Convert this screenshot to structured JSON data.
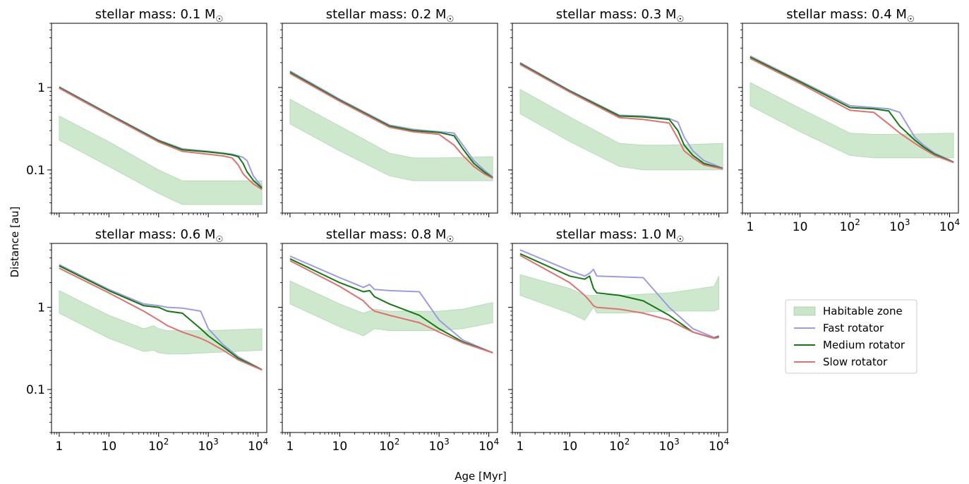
{
  "figure": {
    "ylabel": "Distance [au]",
    "xlabel": "Age [Myr]",
    "legend": {
      "placement": "right",
      "entries": [
        {
          "label": "Habitable zone",
          "color": "#a6d6a6",
          "kind": "band"
        },
        {
          "label": "Fast rotator",
          "color": "#9b9be6",
          "kind": "line"
        },
        {
          "label": "Medium rotator",
          "color": "#117a11",
          "kind": "line"
        },
        {
          "label": "Slow rotator",
          "color": "#e36f6f",
          "kind": "line"
        }
      ]
    }
  },
  "chart_data": [
    {
      "type": "line",
      "title": "stellar mass: 0.1 M",
      "title_symbol": "☉",
      "xscale": "log",
      "yscale": "log",
      "xlim": [
        0.7,
        15000
      ],
      "ylim": [
        0.03,
        6
      ],
      "x": [
        1,
        10,
        100,
        300,
        1000,
        2000,
        3000,
        4000,
        5000,
        6000,
        8000,
        12000
      ],
      "series": [
        {
          "name": "Fast rotator",
          "values": [
            1.02,
            0.48,
            0.23,
            0.18,
            0.168,
            0.16,
            0.155,
            0.148,
            0.142,
            0.13,
            0.085,
            0.062
          ]
        },
        {
          "name": "Medium rotator",
          "values": [
            1.0,
            0.47,
            0.225,
            0.176,
            0.165,
            0.158,
            0.152,
            0.145,
            0.12,
            0.095,
            0.075,
            0.06
          ]
        },
        {
          "name": "Slow rotator",
          "values": [
            0.98,
            0.46,
            0.218,
            0.168,
            0.155,
            0.148,
            0.14,
            0.115,
            0.09,
            0.08,
            0.068,
            0.058
          ]
        }
      ],
      "habitable_zone": {
        "x": [
          1,
          10,
          100,
          300,
          1000,
          12000
        ],
        "low": [
          0.23,
          0.11,
          0.052,
          0.038,
          0.038,
          0.038
        ],
        "high": [
          0.45,
          0.22,
          0.1,
          0.074,
          0.074,
          0.074
        ]
      }
    },
    {
      "type": "line",
      "title": "stellar mass: 0.2 M",
      "title_symbol": "☉",
      "xscale": "log",
      "yscale": "log",
      "xlim": [
        0.7,
        15000
      ],
      "ylim": [
        0.03,
        6
      ],
      "x": [
        1,
        10,
        100,
        300,
        1000,
        2000,
        3000,
        5000,
        8000,
        12000
      ],
      "series": [
        {
          "name": "Fast rotator",
          "values": [
            1.58,
            0.72,
            0.35,
            0.31,
            0.29,
            0.28,
            0.2,
            0.13,
            0.1,
            0.082
          ]
        },
        {
          "name": "Medium rotator",
          "values": [
            1.53,
            0.7,
            0.34,
            0.3,
            0.285,
            0.26,
            0.18,
            0.12,
            0.095,
            0.08
          ]
        },
        {
          "name": "Slow rotator",
          "values": [
            1.48,
            0.68,
            0.33,
            0.29,
            0.27,
            0.2,
            0.15,
            0.11,
            0.09,
            0.079
          ]
        }
      ],
      "habitable_zone": {
        "x": [
          1,
          10,
          100,
          300,
          1000,
          12000
        ],
        "low": [
          0.36,
          0.17,
          0.085,
          0.074,
          0.074,
          0.074
        ],
        "high": [
          0.72,
          0.34,
          0.16,
          0.14,
          0.14,
          0.145
        ]
      }
    },
    {
      "type": "line",
      "title": "stellar mass: 0.3 M",
      "title_symbol": "☉",
      "xscale": "log",
      "yscale": "log",
      "xlim": [
        0.7,
        15000
      ],
      "ylim": [
        0.03,
        6
      ],
      "x": [
        1,
        10,
        100,
        300,
        1000,
        1500,
        2000,
        3000,
        5000,
        12000
      ],
      "series": [
        {
          "name": "Fast rotator",
          "values": [
            2.0,
            0.92,
            0.46,
            0.45,
            0.42,
            0.38,
            0.25,
            0.17,
            0.13,
            0.105
          ]
        },
        {
          "name": "Medium rotator",
          "values": [
            1.95,
            0.9,
            0.45,
            0.44,
            0.41,
            0.3,
            0.2,
            0.15,
            0.12,
            0.104
          ]
        },
        {
          "name": "Slow rotator",
          "values": [
            1.9,
            0.88,
            0.43,
            0.41,
            0.37,
            0.24,
            0.17,
            0.14,
            0.115,
            0.103
          ]
        }
      ],
      "habitable_zone": {
        "x": [
          1,
          10,
          100,
          300,
          1000,
          12000
        ],
        "low": [
          0.48,
          0.22,
          0.11,
          0.1,
          0.1,
          0.1
        ],
        "high": [
          0.95,
          0.44,
          0.21,
          0.2,
          0.2,
          0.21
        ]
      }
    },
    {
      "type": "line",
      "title": "stellar mass: 0.4 M",
      "title_symbol": "☉",
      "xscale": "log",
      "yscale": "log",
      "xlim": [
        0.7,
        15000
      ],
      "ylim": [
        0.03,
        6
      ],
      "x": [
        1,
        10,
        100,
        300,
        600,
        1000,
        2000,
        3000,
        5000,
        12000
      ],
      "series": [
        {
          "name": "Fast rotator",
          "values": [
            2.4,
            1.2,
            0.6,
            0.57,
            0.55,
            0.5,
            0.25,
            0.2,
            0.16,
            0.125
          ]
        },
        {
          "name": "Medium rotator",
          "values": [
            2.33,
            1.17,
            0.57,
            0.55,
            0.52,
            0.34,
            0.23,
            0.19,
            0.155,
            0.124
          ]
        },
        {
          "name": "Slow rotator",
          "values": [
            2.25,
            1.12,
            0.53,
            0.5,
            0.36,
            0.28,
            0.21,
            0.18,
            0.15,
            0.123
          ]
        }
      ],
      "habitable_zone": {
        "x": [
          1,
          10,
          100,
          300,
          1000,
          12000
        ],
        "low": [
          0.6,
          0.29,
          0.15,
          0.14,
          0.14,
          0.14
        ],
        "high": [
          1.15,
          0.56,
          0.28,
          0.27,
          0.27,
          0.28
        ]
      }
    },
    {
      "type": "line",
      "title": "stellar mass: 0.6 M",
      "title_symbol": "☉",
      "xscale": "log",
      "yscale": "log",
      "xlim": [
        0.7,
        15000
      ],
      "ylim": [
        0.03,
        6
      ],
      "x": [
        1,
        10,
        50,
        100,
        150,
        300,
        700,
        1000,
        2000,
        4000,
        12000
      ],
      "series": [
        {
          "name": "Fast rotator",
          "values": [
            3.3,
            1.65,
            1.1,
            1.05,
            1.0,
            0.98,
            0.9,
            0.55,
            0.35,
            0.25,
            0.175
          ]
        },
        {
          "name": "Medium rotator",
          "values": [
            3.2,
            1.6,
            1.05,
            1.0,
            0.9,
            0.85,
            0.55,
            0.45,
            0.33,
            0.24,
            0.174
          ]
        },
        {
          "name": "Slow rotator",
          "values": [
            3.0,
            1.5,
            0.9,
            0.7,
            0.6,
            0.5,
            0.42,
            0.38,
            0.3,
            0.23,
            0.173
          ]
        }
      ],
      "habitable_zone": {
        "x": [
          1,
          10,
          50,
          80,
          100,
          150,
          300,
          1000,
          12000
        ],
        "low": [
          0.85,
          0.42,
          0.29,
          0.3,
          0.28,
          0.27,
          0.27,
          0.28,
          0.3
        ],
        "high": [
          1.6,
          0.8,
          0.55,
          0.6,
          0.55,
          0.52,
          0.52,
          0.52,
          0.55
        ]
      }
    },
    {
      "type": "line",
      "title": "stellar mass: 0.8 M",
      "title_symbol": "☉",
      "xscale": "log",
      "yscale": "log",
      "xlim": [
        0.7,
        15000
      ],
      "ylim": [
        0.03,
        6
      ],
      "x": [
        1,
        10,
        30,
        40,
        50,
        100,
        400,
        1000,
        3000,
        12000
      ],
      "series": [
        {
          "name": "Fast rotator",
          "values": [
            4.2,
            2.3,
            1.75,
            1.9,
            1.65,
            1.6,
            1.55,
            0.7,
            0.4,
            0.28
          ]
        },
        {
          "name": "Medium rotator",
          "values": [
            3.9,
            2.0,
            1.55,
            1.6,
            1.35,
            1.1,
            0.8,
            0.55,
            0.38,
            0.28
          ]
        },
        {
          "name": "Slow rotator",
          "values": [
            3.7,
            1.8,
            1.2,
            1.0,
            0.9,
            0.8,
            0.65,
            0.5,
            0.37,
            0.28
          ]
        }
      ],
      "habitable_zone": {
        "x": [
          1,
          10,
          30,
          50,
          100,
          300,
          1000,
          3000,
          12000
        ],
        "low": [
          1.1,
          0.58,
          0.45,
          0.55,
          0.52,
          0.52,
          0.52,
          0.55,
          0.65
        ],
        "high": [
          2.1,
          1.1,
          0.85,
          0.95,
          0.9,
          0.9,
          0.9,
          0.95,
          1.15
        ]
      }
    },
    {
      "type": "line",
      "title": "stellar mass: 1.0 M",
      "title_symbol": "☉",
      "xscale": "log",
      "yscale": "log",
      "xlim": [
        0.7,
        15000
      ],
      "ylim": [
        0.03,
        6
      ],
      "x": [
        1,
        10,
        20,
        25,
        30,
        35,
        100,
        300,
        1000,
        3000,
        8000,
        10000
      ],
      "series": [
        {
          "name": "Fast rotator",
          "values": [
            5.0,
            2.8,
            2.4,
            2.6,
            2.9,
            2.4,
            2.35,
            2.3,
            1.0,
            0.55,
            0.43,
            0.45
          ]
        },
        {
          "name": "Medium rotator",
          "values": [
            4.5,
            2.4,
            2.2,
            2.4,
            1.7,
            1.5,
            1.4,
            1.2,
            0.8,
            0.5,
            0.42,
            0.44
          ]
        },
        {
          "name": "Slow rotator",
          "values": [
            4.3,
            2.0,
            1.4,
            1.2,
            1.05,
            1.0,
            0.95,
            0.85,
            0.7,
            0.5,
            0.42,
            0.43
          ]
        }
      ],
      "habitable_zone": {
        "x": [
          1,
          10,
          20,
          30,
          35,
          100,
          1000,
          8000,
          10000
        ],
        "low": [
          1.4,
          0.85,
          0.7,
          1.0,
          0.85,
          0.85,
          0.9,
          0.9,
          0.95
        ],
        "high": [
          2.5,
          1.7,
          1.4,
          1.4,
          1.4,
          1.4,
          1.5,
          1.8,
          2.4
        ]
      }
    }
  ]
}
